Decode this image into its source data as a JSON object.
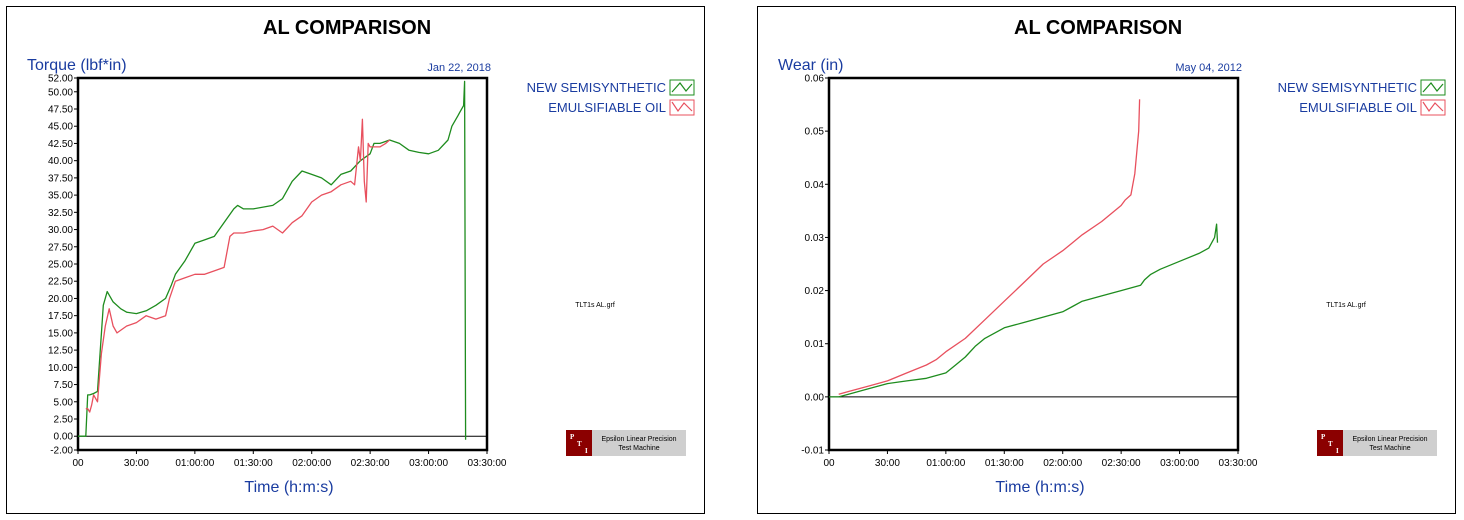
{
  "panels": [
    {
      "title": "AL COMPARISON",
      "ylabel": "Torque (lbf*in)",
      "xlabel": "Time (h:m:s)",
      "date": "Jan 22, 2018",
      "file_label": "TLT1s AL.grf",
      "logo": {
        "letters": [
          "P",
          "T",
          "I"
        ],
        "line1": "Epsilon Linear Precision",
        "line2": "Test Machine"
      },
      "legend": [
        "NEW SEMISYNTHETIC",
        "EMULSIFIABLE OIL"
      ]
    },
    {
      "title": "AL COMPARISON",
      "ylabel": "Wear (in)",
      "xlabel": "Time (h:m:s)",
      "date": "May 04, 2012",
      "file_label": "TLT1s AL.grf",
      "logo": {
        "letters": [
          "P",
          "T",
          "I"
        ],
        "line1": "Epsilon Linear Precision",
        "line2": "Test Machine"
      },
      "legend": [
        "NEW SEMISYNTHETIC",
        "EMULSIFIABLE OIL"
      ]
    }
  ],
  "chart_data": [
    {
      "type": "line",
      "title": "AL COMPARISON",
      "xlabel": "Time (h:m:s)",
      "ylabel": "Torque (lbf*in)",
      "x_unit": "minutes",
      "xlim": [
        0,
        210
      ],
      "ylim": [
        -2,
        52
      ],
      "x_ticks": [
        0,
        30,
        60,
        90,
        120,
        150,
        180,
        210
      ],
      "x_tick_labels": [
        "00",
        "30:00",
        "01:00:00",
        "01:30:00",
        "02:00:00",
        "02:30:00",
        "03:00:00",
        "03:30:00"
      ],
      "y_ticks": [
        -2,
        0,
        2.5,
        5,
        7.5,
        10,
        12.5,
        15,
        17.5,
        20,
        22.5,
        25,
        27.5,
        30,
        32.5,
        35,
        37.5,
        40,
        42.5,
        45,
        47.5,
        50,
        52
      ],
      "y_tick_labels": [
        "-2.00",
        "0.00",
        "2.50",
        "5.00",
        "7.50",
        "10.00",
        "12.50",
        "15.00",
        "17.50",
        "20.00",
        "22.50",
        "25.00",
        "27.50",
        "30.00",
        "32.50",
        "35.00",
        "37.50",
        "40.00",
        "42.50",
        "45.00",
        "47.50",
        "50.00",
        "52.00"
      ],
      "zero_line": 0,
      "legend_position": "right",
      "series": [
        {
          "name": "NEW SEMISYNTHETIC",
          "color": "#1e8c1e",
          "x": [
            0,
            4,
            5,
            6,
            8,
            10,
            13,
            15,
            18,
            22,
            25,
            30,
            35,
            40,
            45,
            48,
            50,
            55,
            60,
            65,
            70,
            80,
            82,
            85,
            90,
            100,
            105,
            110,
            115,
            120,
            125,
            130,
            135,
            140,
            145,
            150,
            152,
            155,
            160,
            165,
            170,
            175,
            180,
            185,
            190,
            192,
            195,
            196,
            198,
            198.5,
            199
          ],
          "y": [
            0,
            0,
            6,
            6,
            6.2,
            6.5,
            19,
            21,
            19.5,
            18.5,
            18,
            17.8,
            18.2,
            19,
            20,
            22,
            23.5,
            25.5,
            28,
            28.5,
            29,
            33,
            33.5,
            33,
            33,
            33.5,
            34.5,
            37,
            38.5,
            38,
            37.5,
            36.5,
            38,
            38.5,
            40,
            41,
            42.5,
            42.5,
            43,
            42.5,
            41.5,
            41.2,
            41,
            41.5,
            43,
            45,
            46.5,
            47,
            48,
            51.5,
            -0.5
          ]
        },
        {
          "name": "EMULSIFIABLE OIL",
          "color": "#e8505e",
          "x": [
            4,
            5,
            6,
            7,
            8,
            10,
            12,
            14,
            16,
            18,
            20,
            25,
            30,
            35,
            40,
            45,
            47,
            50,
            55,
            60,
            65,
            70,
            75,
            78,
            80,
            85,
            90,
            95,
            100,
            105,
            110,
            115,
            120,
            125,
            130,
            135,
            140,
            142,
            144,
            145,
            146,
            147,
            148,
            149,
            150,
            155,
            158,
            160
          ],
          "y": [
            4,
            4,
            3.5,
            4.5,
            6,
            5,
            12,
            16,
            18.5,
            16,
            15,
            16,
            16.5,
            17.5,
            17,
            17.5,
            20,
            22.5,
            23,
            23.5,
            23.5,
            24,
            24.5,
            29,
            29.5,
            29.5,
            29.8,
            30,
            30.5,
            29.5,
            31,
            32,
            34,
            35,
            35.5,
            36.5,
            37,
            36.5,
            42,
            40,
            46,
            37,
            34,
            42.5,
            42,
            42,
            42.5,
            43
          ]
        }
      ]
    },
    {
      "type": "line",
      "title": "AL COMPARISON",
      "xlabel": "Time (h:m:s)",
      "ylabel": "Wear (in)",
      "x_unit": "minutes",
      "xlim": [
        0,
        210
      ],
      "ylim": [
        -0.01,
        0.06
      ],
      "x_ticks": [
        0,
        30,
        60,
        90,
        120,
        150,
        180,
        210
      ],
      "x_tick_labels": [
        "00",
        "30:00",
        "01:00:00",
        "01:30:00",
        "02:00:00",
        "02:30:00",
        "03:00:00",
        "03:30:00"
      ],
      "y_ticks": [
        -0.01,
        0,
        0.01,
        0.02,
        0.03,
        0.04,
        0.05,
        0.06
      ],
      "y_tick_labels": [
        "-0.01",
        "0.00",
        "0.01",
        "0.02",
        "0.03",
        "0.04",
        "0.05",
        "0.06"
      ],
      "zero_line": 0,
      "legend_position": "right",
      "series": [
        {
          "name": "NEW SEMISYNTHETIC",
          "color": "#1e8c1e",
          "x": [
            0,
            5,
            10,
            20,
            30,
            40,
            50,
            60,
            65,
            70,
            75,
            80,
            90,
            100,
            110,
            120,
            125,
            130,
            140,
            150,
            160,
            162,
            165,
            170,
            180,
            190,
            195,
            198,
            199,
            199.5
          ],
          "y": [
            0,
            0,
            0.0005,
            0.0015,
            0.0025,
            0.003,
            0.0035,
            0.0045,
            0.006,
            0.0075,
            0.0095,
            0.011,
            0.013,
            0.014,
            0.015,
            0.016,
            0.017,
            0.018,
            0.019,
            0.02,
            0.021,
            0.022,
            0.023,
            0.024,
            0.0255,
            0.027,
            0.028,
            0.03,
            0.0325,
            0.029
          ]
        },
        {
          "name": "EMULSIFIABLE OIL",
          "color": "#e8505e",
          "x": [
            5,
            10,
            20,
            30,
            40,
            50,
            55,
            60,
            70,
            80,
            90,
            100,
            110,
            120,
            125,
            130,
            140,
            150,
            152,
            155,
            157,
            159,
            159.5
          ],
          "y": [
            0.0005,
            0.001,
            0.002,
            0.003,
            0.0045,
            0.006,
            0.007,
            0.0085,
            0.011,
            0.0145,
            0.018,
            0.0215,
            0.025,
            0.0275,
            0.029,
            0.0305,
            0.033,
            0.036,
            0.037,
            0.038,
            0.042,
            0.05,
            0.056
          ]
        }
      ]
    }
  ]
}
